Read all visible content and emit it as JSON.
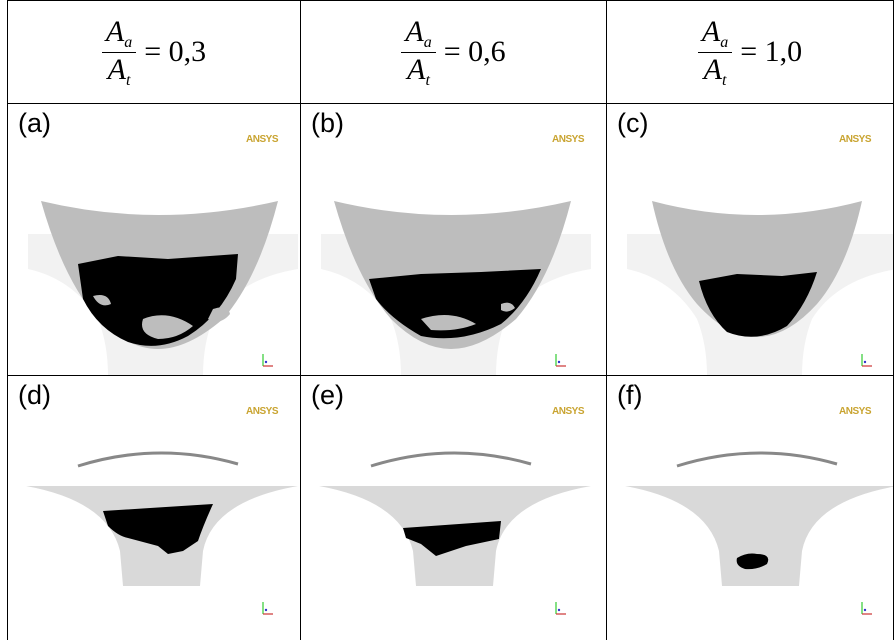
{
  "header": [
    {
      "numerator": {
        "symbol": "A",
        "subscript": "a"
      },
      "denominator": {
        "symbol": "A",
        "subscript": "t"
      },
      "value": "= 0,3"
    },
    {
      "numerator": {
        "symbol": "A",
        "subscript": "a"
      },
      "denominator": {
        "symbol": "A",
        "subscript": "t"
      },
      "value": "= 0,6"
    },
    {
      "numerator": {
        "symbol": "A",
        "subscript": "a"
      },
      "denominator": {
        "symbol": "A",
        "subscript": "t"
      },
      "value": "= 1,0"
    }
  ],
  "panels": [
    {
      "label": "(a)",
      "logo": "ANSYS"
    },
    {
      "label": "(b)",
      "logo": "ANSYS"
    },
    {
      "label": "(c)",
      "logo": "ANSYS"
    },
    {
      "label": "(d)",
      "logo": "ANSYS"
    },
    {
      "label": "(e)",
      "logo": "ANSYS"
    },
    {
      "label": "(f)",
      "logo": "ANSYS"
    }
  ]
}
